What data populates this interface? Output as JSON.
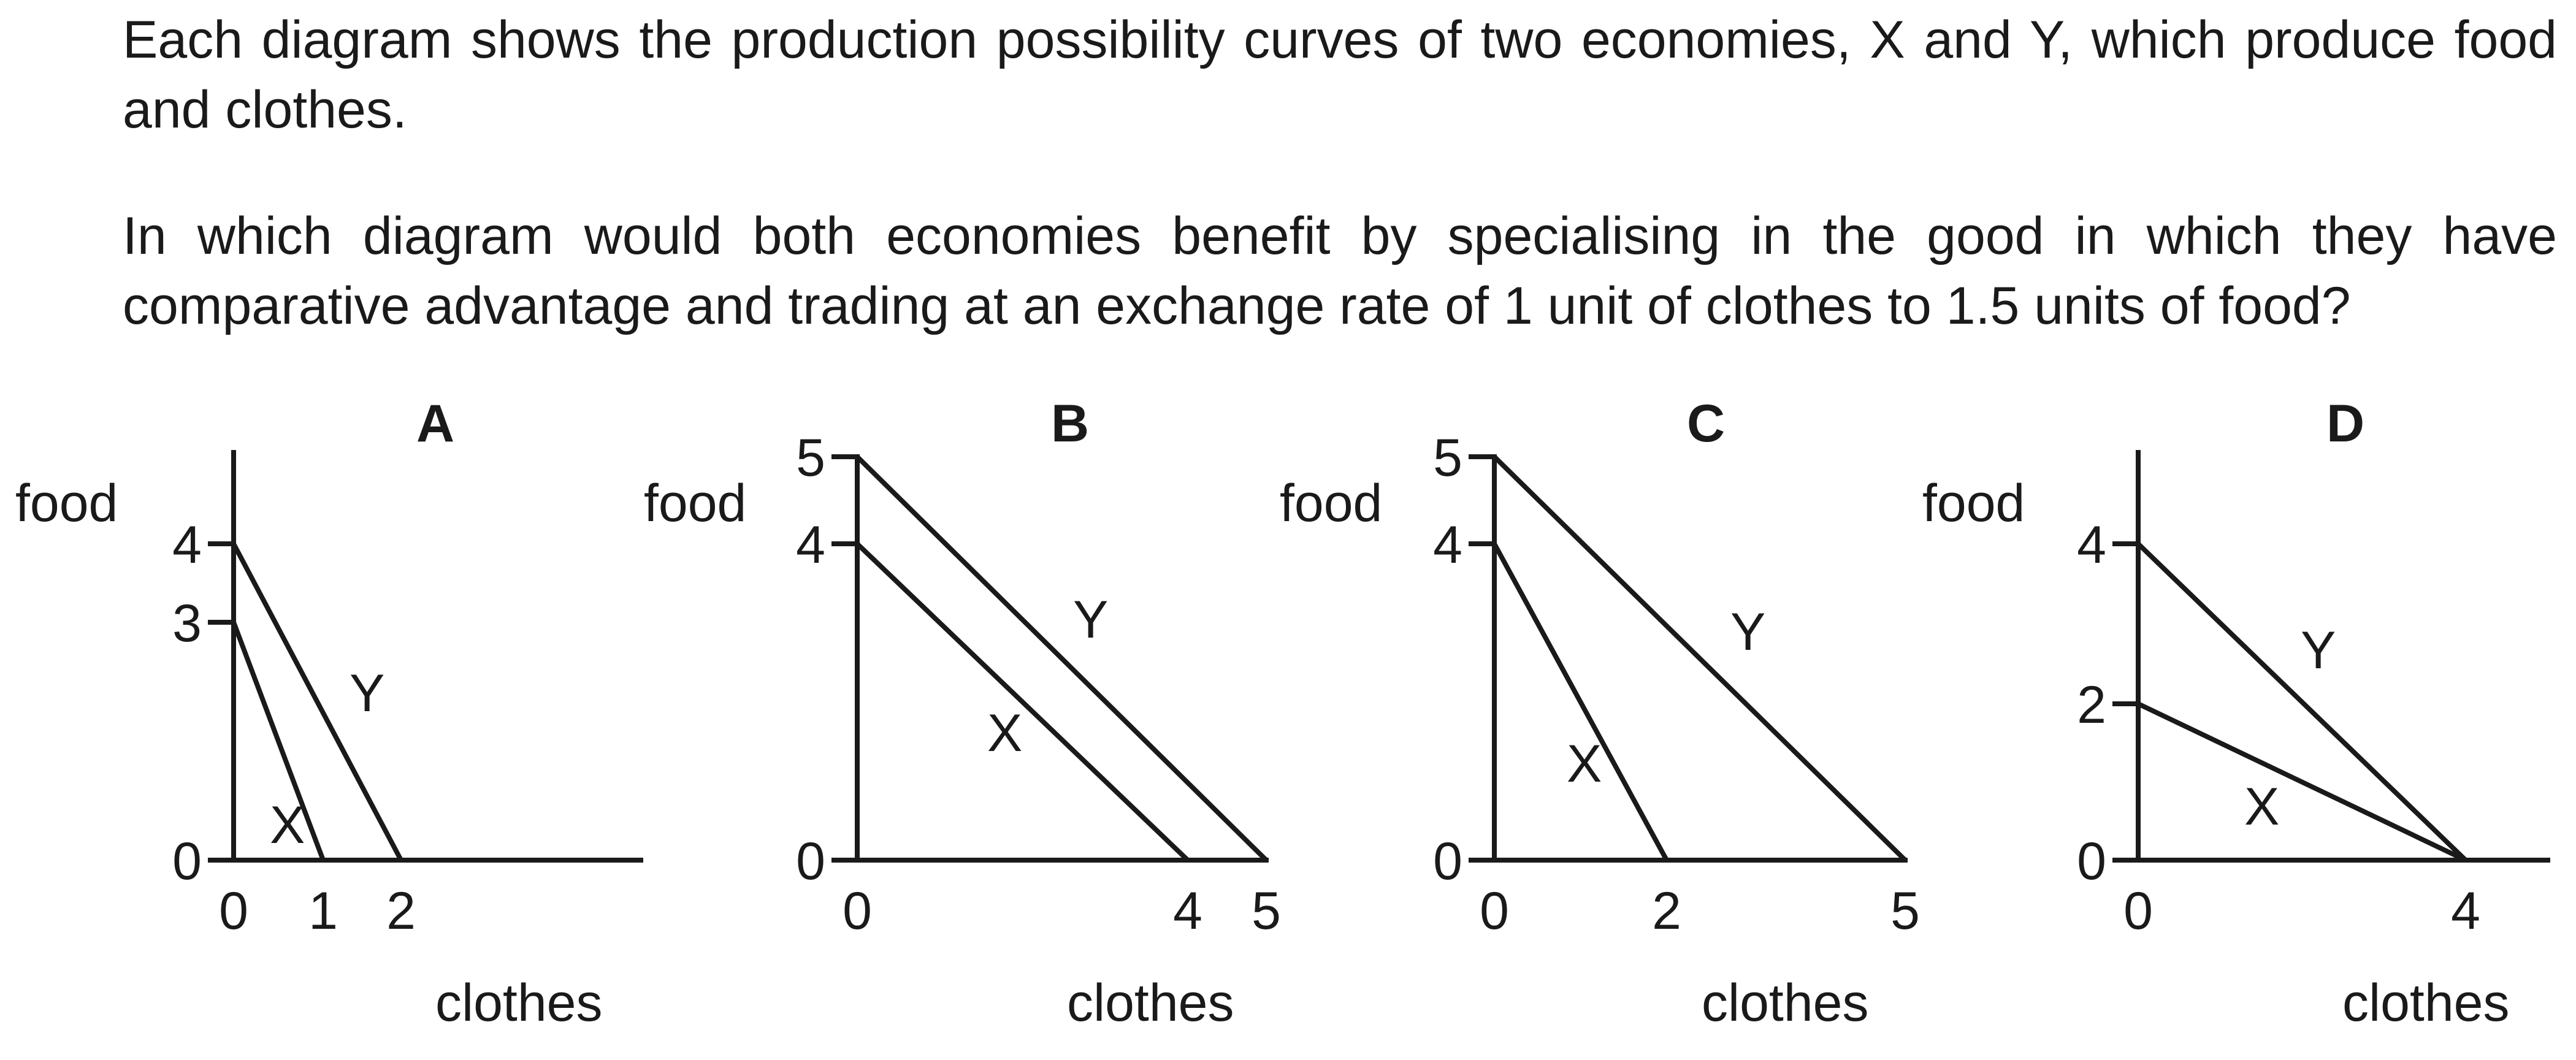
{
  "question": {
    "line1": "Each diagram shows the production possibility curves of two economies, X and Y, which produce food and clothes.",
    "line2": "In which diagram would both economies benefit by specialising in the good in which they have comparative advantage and trading at an exchange rate of 1 unit of clothes to 1.5 units of food?"
  },
  "panels": [
    {
      "letter": "A",
      "ylabel": "food",
      "xlabel": "clothes",
      "y_ticks": [
        0,
        3,
        4
      ],
      "x_ticks": [
        0,
        1,
        2
      ],
      "curves": [
        {
          "label": "X",
          "food": 3,
          "clothes": 1
        },
        {
          "label": "Y",
          "food": 4,
          "clothes": 2
        }
      ]
    },
    {
      "letter": "B",
      "ylabel": "food",
      "xlabel": "clothes",
      "y_ticks": [
        0,
        4,
        5
      ],
      "x_ticks": [
        0,
        4,
        5
      ],
      "curves": [
        {
          "label": "X",
          "food": 4,
          "clothes": 4
        },
        {
          "label": "Y",
          "food": 5,
          "clothes": 5
        }
      ]
    },
    {
      "letter": "C",
      "ylabel": "food",
      "xlabel": "clothes",
      "y_ticks": [
        0,
        4,
        5
      ],
      "x_ticks": [
        0,
        2,
        5
      ],
      "curves": [
        {
          "label": "X",
          "food": 4,
          "clothes": 2
        },
        {
          "label": "Y",
          "food": 5,
          "clothes": 5
        }
      ]
    },
    {
      "letter": "D",
      "ylabel": "food",
      "xlabel": "clothes",
      "y_ticks": [
        0,
        2,
        4
      ],
      "x_ticks": [
        0,
        4
      ],
      "curves": [
        {
          "label": "X",
          "food": 2,
          "clothes": 4
        },
        {
          "label": "Y",
          "food": 4,
          "clothes": 4
        }
      ]
    }
  ]
}
